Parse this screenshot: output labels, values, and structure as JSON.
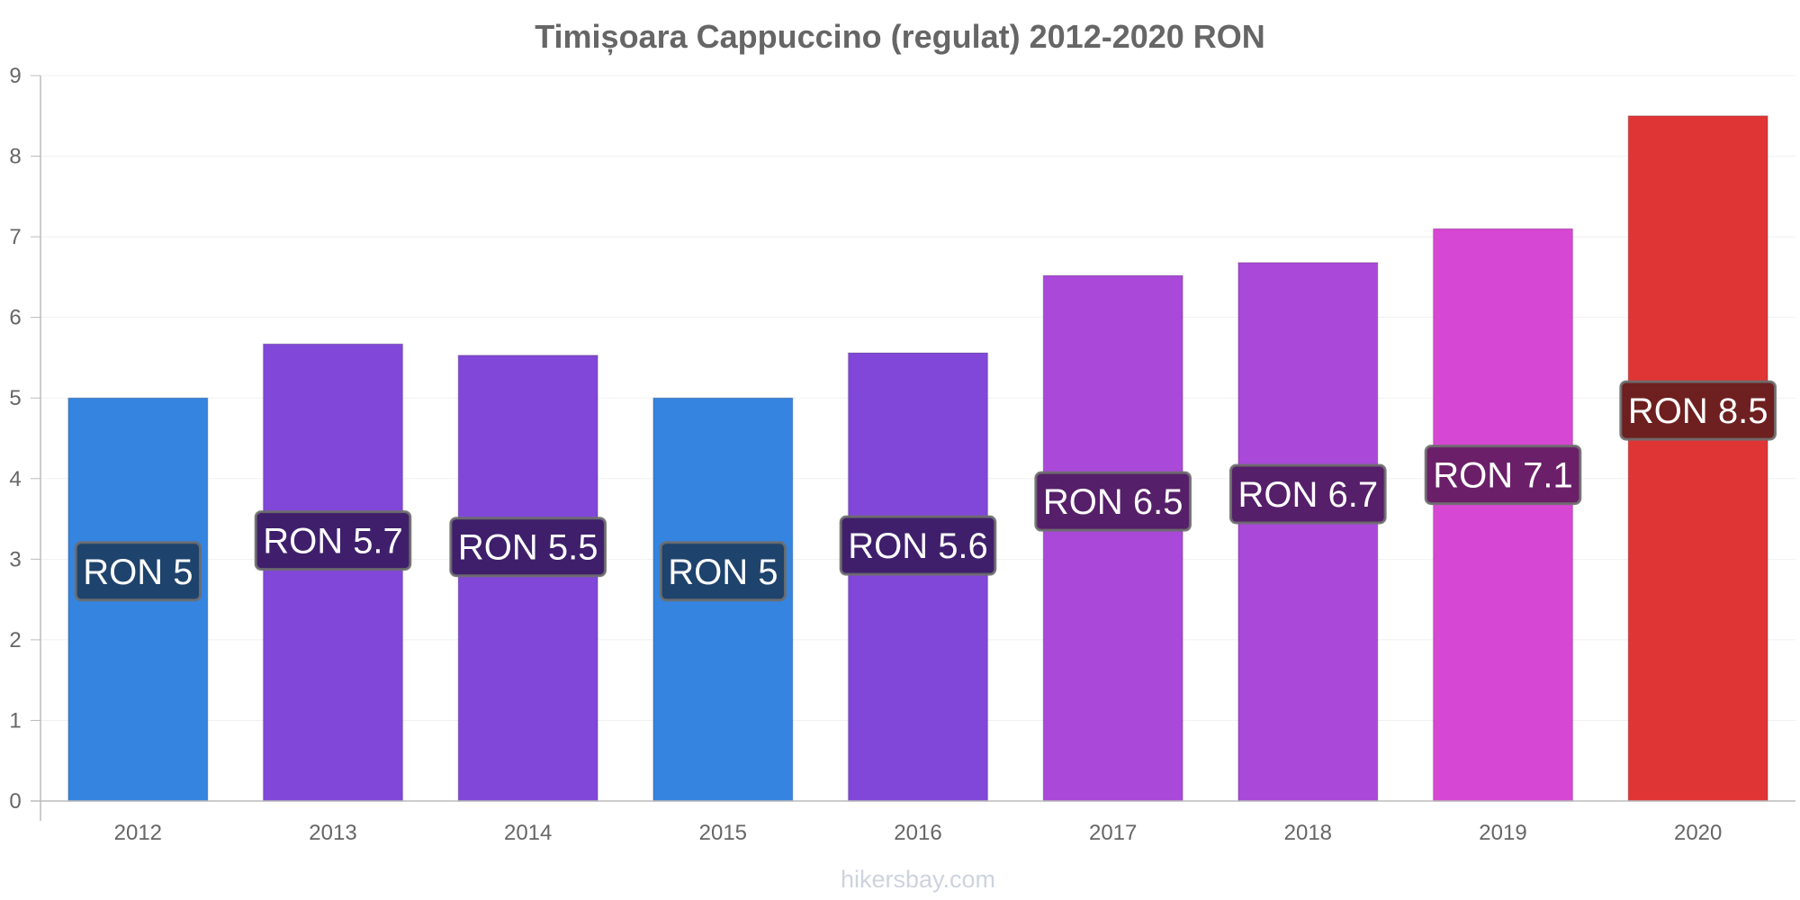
{
  "chart_data": {
    "type": "bar",
    "title": "Timișoara Cappuccino (regulat) 2012-2020 RON",
    "xlabel": "",
    "ylabel": "",
    "categories": [
      "2012",
      "2013",
      "2014",
      "2015",
      "2016",
      "2017",
      "2018",
      "2019",
      "2020"
    ],
    "values": [
      5.0,
      5.67,
      5.53,
      5.0,
      5.56,
      6.52,
      6.68,
      7.1,
      8.5
    ],
    "data_labels": [
      "RON 5",
      "RON 5.7",
      "RON 5.5",
      "RON 5",
      "RON 5.6",
      "RON 6.5",
      "RON 6.7",
      "RON 7.1",
      "RON 8.5"
    ],
    "bar_colors": [
      "#3584e0",
      "#8147d9",
      "#8147d9",
      "#3584e0",
      "#8147d9",
      "#a948d9",
      "#a948d9",
      "#d648d3",
      "#e03535"
    ],
    "label_box_colors": [
      "#1e436c",
      "#3f1f6b",
      "#3f1f6b",
      "#1e436c",
      "#3f1f6b",
      "#561f69",
      "#561f69",
      "#6b1f69",
      "#6e1f1f"
    ],
    "ylim": [
      0,
      9
    ],
    "yticks": [
      "0",
      "1",
      "2",
      "3",
      "4",
      "5",
      "6",
      "7",
      "8",
      "9"
    ],
    "grid": true,
    "legend": "none"
  },
  "watermark": "hikersbay.com"
}
